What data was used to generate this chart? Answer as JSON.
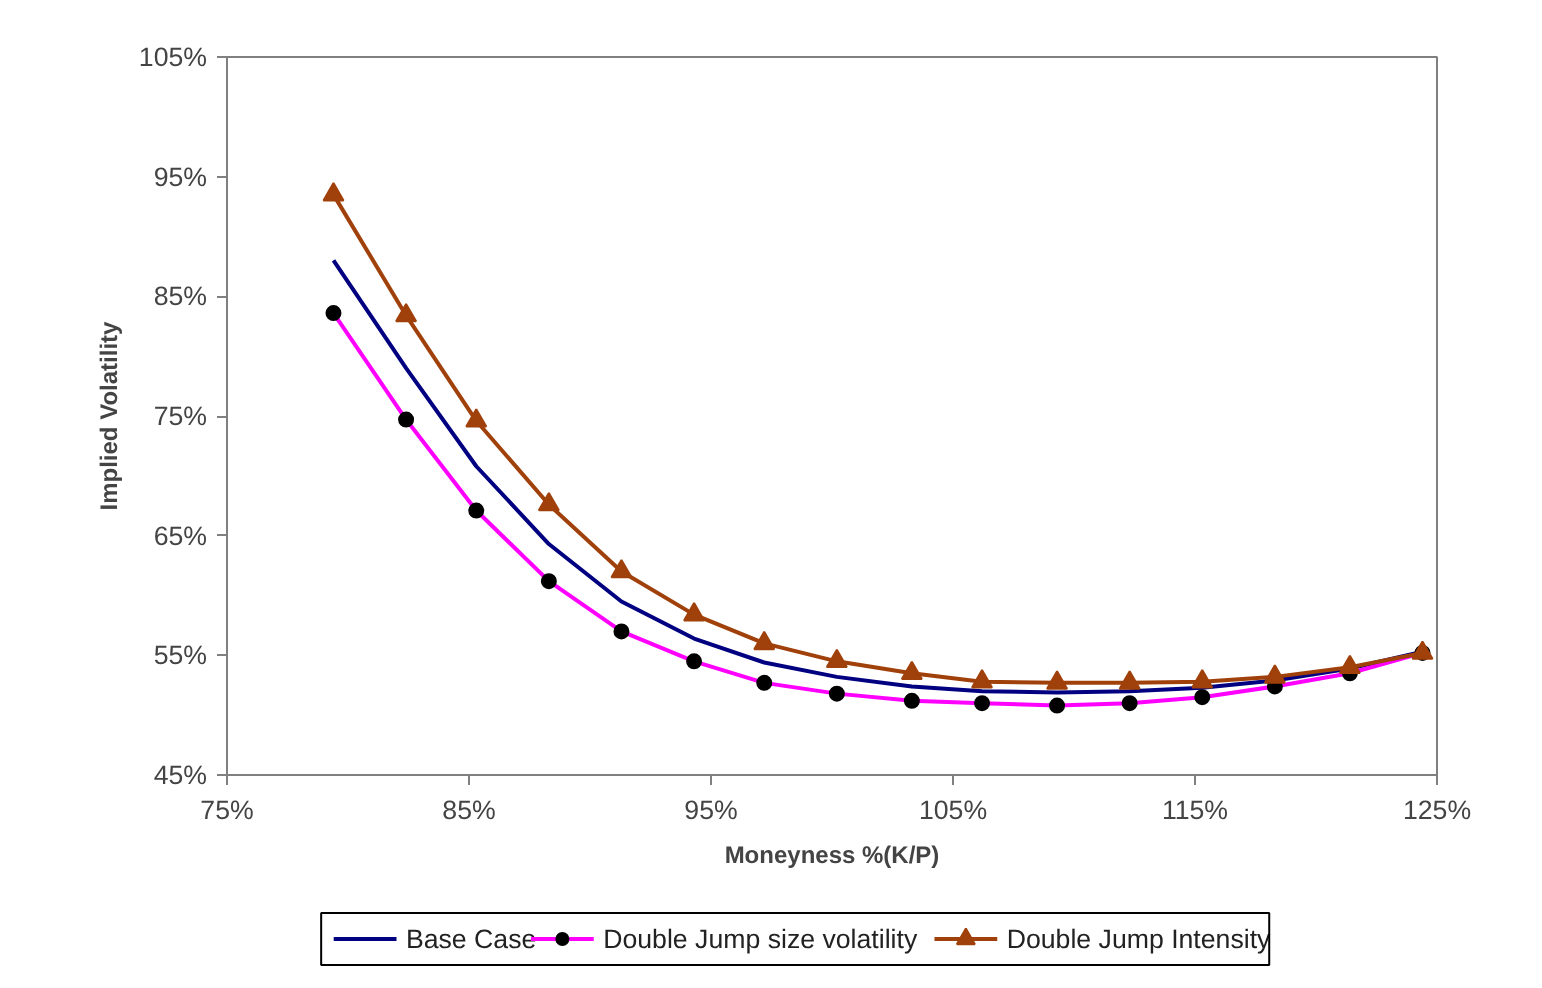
{
  "chart_data": {
    "type": "line",
    "xlabel": "Moneyness %(K/P)",
    "ylabel": "Implied Volatility",
    "x": [
      79.4,
      82.4,
      85.3,
      88.3,
      91.3,
      94.3,
      97.2,
      100.2,
      103.3,
      106.2,
      109.3,
      112.3,
      115.3,
      118.3,
      121.4,
      124.4
    ],
    "series": [
      {
        "name": "Base Case",
        "color": "#000080",
        "marker": "none",
        "values": [
          88.0,
          79.0,
          70.8,
          64.3,
          59.5,
          56.4,
          54.4,
          53.2,
          52.4,
          52.0,
          51.9,
          52.0,
          52.3,
          52.9,
          53.9,
          55.3
        ]
      },
      {
        "name": "Double Jump size volatility",
        "color": "#ff00ff",
        "marker": "circle",
        "colors": [
          "#000000",
          "#000000",
          "#000000",
          "#000000",
          "#000000",
          "#000000",
          "#000000",
          "#000000",
          "#000000",
          "#000000",
          "#000000",
          "#000000",
          "#000000",
          "#000000",
          "#000000",
          "#000000"
        ],
        "values": [
          83.6,
          74.7,
          67.1,
          61.2,
          57.0,
          54.5,
          52.7,
          51.8,
          51.2,
          51.0,
          50.8,
          51.0,
          51.5,
          52.4,
          53.5,
          55.2
        ]
      },
      {
        "name": "Double Jump Intensity",
        "color": "#a0400a",
        "marker": "triangle",
        "values": [
          93.5,
          83.4,
          74.6,
          67.6,
          62.0,
          58.4,
          56.0,
          54.5,
          53.5,
          52.8,
          52.7,
          52.7,
          52.8,
          53.2,
          54.0,
          55.2
        ]
      }
    ],
    "xlim": [
      75,
      125
    ],
    "ylim": [
      45,
      105
    ],
    "xticks": [
      {
        "value": 75,
        "label": "75%"
      },
      {
        "value": 85,
        "label": "85%"
      },
      {
        "value": 95,
        "label": "95%"
      },
      {
        "value": 105,
        "label": "105%"
      },
      {
        "value": 115,
        "label": "115%"
      },
      {
        "value": 125,
        "label": "125%"
      }
    ],
    "yticks": [
      {
        "value": 45,
        "label": "45%"
      },
      {
        "value": 55,
        "label": "55%"
      },
      {
        "value": 65,
        "label": "65%"
      },
      {
        "value": 75,
        "label": "75%"
      },
      {
        "value": 85,
        "label": "85%"
      },
      {
        "value": 95,
        "label": "95%"
      },
      {
        "value": 105,
        "label": "105%"
      }
    ],
    "grid": false,
    "legend": "bottom",
    "line_style": "solid"
  }
}
